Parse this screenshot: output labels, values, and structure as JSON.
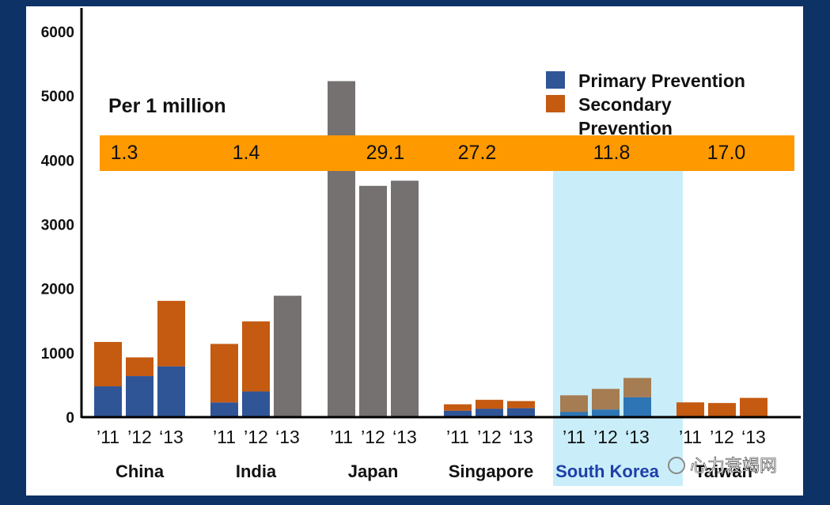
{
  "chart_data": {
    "type": "bar",
    "stacked": true,
    "title": "Per 1 million",
    "ylim": [
      0,
      6000
    ],
    "y_ticks": [
      0,
      1000,
      2000,
      3000,
      4000,
      5000,
      6000
    ],
    "legend": {
      "placement": "top-right",
      "items": [
        {
          "name": "Primary Prevention",
          "color": "#2f5597"
        },
        {
          "name": "Secondary Prevention",
          "color": "#c55a11"
        }
      ]
    },
    "highlighted_group": "South Korea",
    "groups": [
      {
        "name": "China",
        "per_million": "1.3",
        "bars": [
          {
            "label": "’11",
            "primary": 480,
            "secondary": 690,
            "total": null
          },
          {
            "label": "’12",
            "primary": 640,
            "secondary": 290,
            "total": null
          },
          {
            "label": "‘13",
            "primary": 790,
            "secondary": 1020,
            "total": null
          }
        ]
      },
      {
        "name": "India",
        "per_million": "1.4",
        "bars": [
          {
            "label": "’11",
            "primary": 230,
            "secondary": 910,
            "total": null
          },
          {
            "label": "’12",
            "primary": 400,
            "secondary": 1090,
            "total": null
          },
          {
            "label": "‘13",
            "primary": null,
            "secondary": null,
            "total": 1890
          }
        ]
      },
      {
        "name": "Japan",
        "per_million": "29.1",
        "bars": [
          {
            "label": "’11",
            "primary": null,
            "secondary": null,
            "total": 5230
          },
          {
            "label": "’12",
            "primary": null,
            "secondary": null,
            "total": 3600
          },
          {
            "label": "‘13",
            "primary": null,
            "secondary": null,
            "total": 3680
          }
        ]
      },
      {
        "name": "Singapore",
        "per_million": "27.2",
        "bars": [
          {
            "label": "’11",
            "primary": 100,
            "secondary": 100,
            "total": null
          },
          {
            "label": "’12",
            "primary": 130,
            "secondary": 140,
            "total": null
          },
          {
            "label": "‘13",
            "primary": 140,
            "secondary": 110,
            "total": null
          }
        ]
      },
      {
        "name": "South Korea",
        "per_million": "11.8",
        "bars": [
          {
            "label": "’11",
            "primary": 80,
            "secondary": 260,
            "total": null
          },
          {
            "label": "’12",
            "primary": 120,
            "secondary": 320,
            "total": null
          },
          {
            "label": "‘13",
            "primary": 310,
            "secondary": 300,
            "total": null
          }
        ]
      },
      {
        "name": "Taiwan",
        "per_million": "17.0",
        "bars": [
          {
            "label": "’11",
            "primary": 0,
            "secondary": 230,
            "total": null
          },
          {
            "label": "’12",
            "primary": 0,
            "secondary": 220,
            "total": null
          },
          {
            "label": "‘13",
            "primary": 0,
            "secondary": 300,
            "total": null
          }
        ]
      }
    ],
    "colors": {
      "primary": "#2f5597",
      "secondary": "#c55a11",
      "total_only": "#767171",
      "highlight_band": "#c9eefa",
      "per_million_band": "#ff9900",
      "highlight_label": "#1f3fa6"
    }
  },
  "watermark": "心力衰竭网"
}
